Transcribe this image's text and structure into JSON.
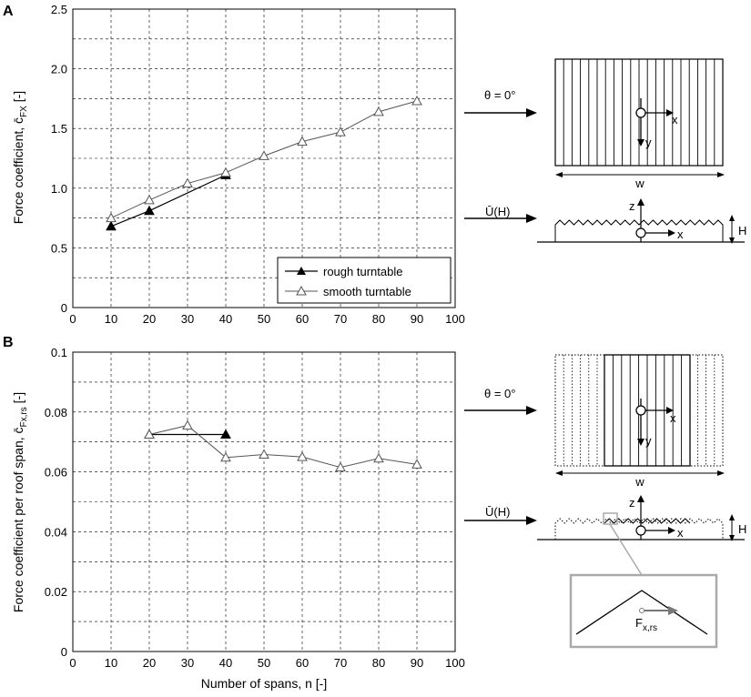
{
  "chart_data": [
    {
      "type": "line",
      "panel_label": "A",
      "ylabel": "Force coefficient, c̄",
      "ylabel_sub": "FX",
      "ylabel_unit": "[-]",
      "xlim": [
        0,
        100
      ],
      "ylim": [
        0,
        2.5
      ],
      "x_ticks": [
        "0",
        "10",
        "20",
        "30",
        "40",
        "50",
        "60",
        "70",
        "80",
        "90",
        "100"
      ],
      "y_ticks": [
        "0",
        "0.5",
        "1.0",
        "1.5",
        "2.0",
        "2.5"
      ],
      "grid": true,
      "legend_position": "bottom-right",
      "series": [
        {
          "name": "rough turntable",
          "marker": "filled-triangle",
          "x": [
            10,
            20,
            40
          ],
          "y": [
            0.68,
            0.81,
            1.11
          ]
        },
        {
          "name": "smooth turntable",
          "marker": "open-triangle",
          "x": [
            10,
            20,
            30,
            40,
            50,
            60,
            70,
            80,
            90
          ],
          "y": [
            0.75,
            0.9,
            1.04,
            1.13,
            1.27,
            1.39,
            1.47,
            1.64,
            1.73
          ]
        }
      ]
    },
    {
      "type": "line",
      "panel_label": "B",
      "xlabel": "Number of spans, n [-]",
      "ylabel": "Force coefficient per roof span, c̄",
      "ylabel_sub": "Fx,rs",
      "ylabel_unit": "[-]",
      "xlim": [
        0,
        100
      ],
      "ylim": [
        0,
        0.1
      ],
      "x_ticks": [
        "0",
        "10",
        "20",
        "30",
        "40",
        "50",
        "60",
        "70",
        "80",
        "90",
        "100"
      ],
      "y_ticks": [
        "0",
        "0.02",
        "0.04",
        "0.06",
        "0.08",
        "0.1"
      ],
      "grid": true,
      "series": [
        {
          "name": "rough turntable",
          "marker": "filled-triangle",
          "x": [
            20,
            40
          ],
          "y": [
            0.0725,
            0.0725
          ]
        },
        {
          "name": "smooth turntable",
          "marker": "open-triangle",
          "x": [
            20,
            30,
            40,
            50,
            60,
            70,
            80,
            90
          ],
          "y": [
            0.0725,
            0.0755,
            0.0648,
            0.0658,
            0.065,
            0.0615,
            0.0645,
            0.0625
          ]
        }
      ]
    }
  ],
  "diagram_a": {
    "angle_label": "θ = 0°",
    "width_label": "w",
    "x_label": "x",
    "y_label": "y",
    "z_label": "z",
    "wind_label": "Ū(H)",
    "height_label": "H"
  },
  "diagram_b": {
    "angle_label": "θ = 0°",
    "width_label": "w",
    "x_label": "x",
    "y_label": "y",
    "z_label": "z",
    "wind_label": "Ū(H)",
    "height_label": "H",
    "force_label": "F",
    "force_sub": "x,rs"
  }
}
